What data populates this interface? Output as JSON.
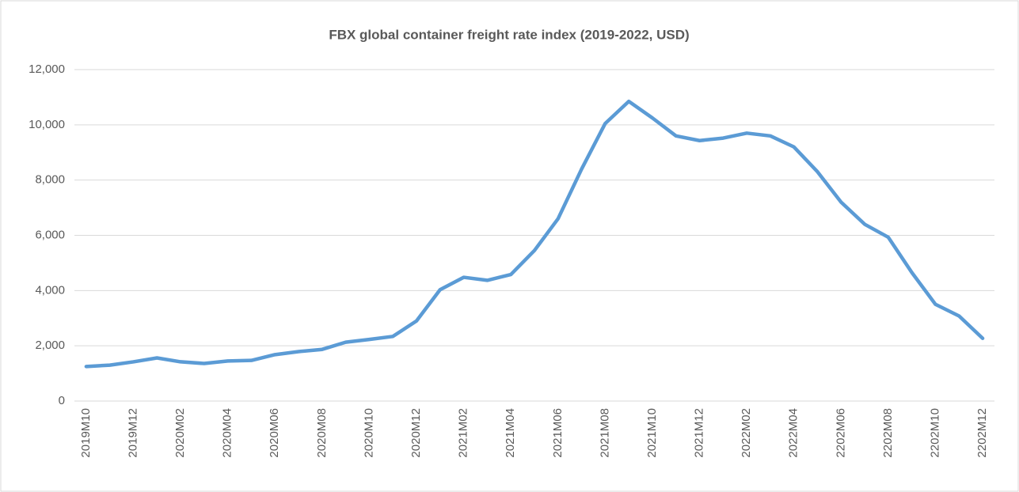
{
  "chart_data": {
    "type": "line",
    "title": "FBX global container freight rate index (2019-2022, USD)",
    "categories": [
      "2019M10",
      null,
      "2019M12",
      null,
      "2020M02",
      null,
      "2020M04",
      null,
      "2020M06",
      null,
      "2020M08",
      null,
      "2020M10",
      null,
      "2020M12",
      null,
      "2021M02",
      null,
      "2021M04",
      null,
      "2021M06",
      null,
      "2021M08",
      null,
      "2021M10",
      null,
      "2021M12",
      null,
      "2022M02",
      null,
      "2022M04",
      null,
      "2202M06",
      null,
      "2202M08",
      null,
      "2202M10",
      null,
      "2202M12"
    ],
    "series": [
      {
        "name": "FBX",
        "color": "#5b9bd5",
        "values": [
          1250,
          1300,
          1420,
          1560,
          1420,
          1360,
          1450,
          1470,
          1680,
          1790,
          1870,
          2130,
          2230,
          2340,
          2900,
          4030,
          4480,
          4370,
          4580,
          5450,
          6600,
          8400,
          10050,
          10850,
          10250,
          9600,
          9430,
          9520,
          9700,
          9600,
          9200,
          8300,
          7200,
          6400,
          5930,
          4650,
          3500,
          3080,
          2270
        ]
      }
    ],
    "ylim": [
      0,
      12000
    ],
    "yticks": [
      0,
      {
        "value": 2000,
        "label": "2,000"
      },
      {
        "value": 4000,
        "label": "4,000"
      },
      {
        "value": 6000,
        "label": "6,000"
      },
      {
        "value": 8000,
        "label": "8,000"
      },
      {
        "value": 10000,
        "label": "10,000"
      },
      {
        "value": 12000,
        "label": "12,000"
      }
    ],
    "grid": true
  }
}
